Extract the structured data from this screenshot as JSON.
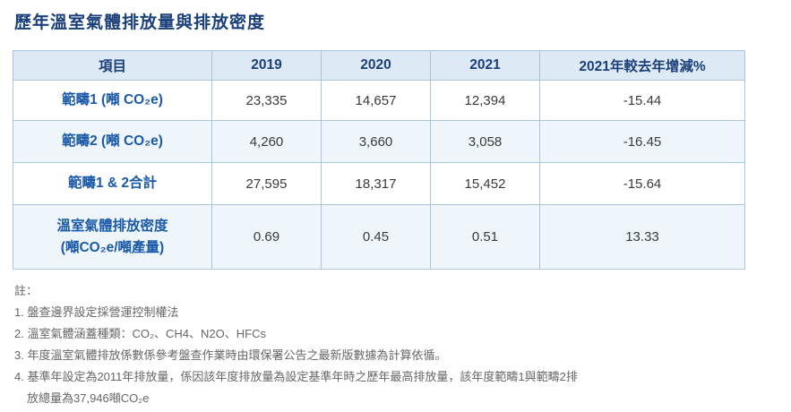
{
  "title": "歷年溫室氣體排放量與排放密度",
  "table": {
    "headers": [
      "項目",
      "2019",
      "2020",
      "2021",
      "2021年較去年增減%"
    ],
    "rows": [
      {
        "label": "範疇1 (噸 CO₂e)",
        "label_line2": "",
        "values": [
          "23,335",
          "14,657",
          "12,394",
          "-15.44"
        ]
      },
      {
        "label": "範疇2 (噸 CO₂e)",
        "label_line2": "",
        "values": [
          "4,260",
          "3,660",
          "3,058",
          "-16.45"
        ]
      },
      {
        "label": "範疇1 & 2合計",
        "label_line2": "",
        "values": [
          "27,595",
          "18,317",
          "15,452",
          "-15.64"
        ]
      },
      {
        "label": "溫室氣體排放密度",
        "label_line2": "(噸CO₂e/噸產量)",
        "values": [
          "0.69",
          "0.45",
          "0.51",
          "13.33"
        ]
      }
    ]
  },
  "notes": {
    "heading": "註：",
    "items": [
      "1. 盤查邊界設定採營運控制權法",
      "2. 溫室氣體涵蓋種類：CO₂、CH4、N2O、HFCs",
      "3. 年度溫室氣體排放係數係參考盤查作業時由環保署公告之最新版數據為計算依循。",
      "4. 基準年設定為2011年排放量，係因該年度排放量為設定基準年時之歷年最高排放量，該年度範疇1與範疇2排"
    ],
    "item4_cont": "放總量為37,946噸CO₂e"
  }
}
